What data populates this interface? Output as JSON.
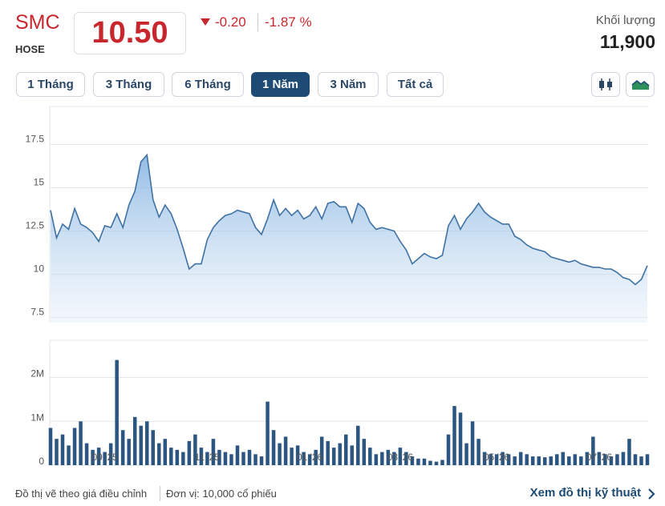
{
  "header": {
    "symbol": "SMC",
    "exchange": "HOSE",
    "price": "10.50",
    "change": "-0.20",
    "change_percent": "-1.87 %",
    "volume_label": "Khối lượng",
    "volume": "11,900"
  },
  "buttons": [
    "1 Tháng",
    "3 Tháng",
    "6 Tháng",
    "1 Năm",
    "3 Năm",
    "Tất cả"
  ],
  "selected_index": 3,
  "footer": {
    "note": "Đồ thị vẽ theo giá điều chỉnh",
    "unit": "Đơn vị: 10,000 cổ phiếu",
    "link": "Xem đồ thị kỹ thuật"
  },
  "chart_data": [
    {
      "type": "area",
      "color": "#3f72a3",
      "grid": true,
      "ylim": [
        7.2,
        19.7
      ],
      "yticks": [
        7.5,
        10,
        12.5,
        15,
        17.5
      ],
      "values": [
        13.7,
        12.1,
        12.9,
        12.6,
        13.8,
        12.9,
        12.7,
        12.4,
        11.9,
        12.8,
        12.7,
        13.5,
        12.7,
        14.0,
        14.8,
        16.5,
        16.9,
        14.3,
        13.3,
        14.0,
        13.5,
        12.6,
        11.5,
        10.3,
        10.6,
        10.6,
        12.0,
        12.7,
        13.1,
        13.4,
        13.5,
        13.7,
        13.6,
        13.5,
        12.7,
        12.3,
        13.2,
        14.3,
        13.4,
        13.8,
        13.4,
        13.7,
        13.2,
        13.4,
        13.9,
        13.2,
        14.1,
        14.2,
        13.9,
        13.9,
        13.0,
        14.1,
        13.8,
        13.0,
        12.6,
        12.7,
        12.6,
        12.5,
        11.9,
        11.4,
        10.6,
        10.9,
        11.2,
        11.0,
        10.9,
        11.1,
        12.8,
        13.4,
        12.6,
        13.2,
        13.6,
        14.1,
        13.6,
        13.3,
        13.1,
        12.9,
        12.9,
        12.2,
        12.0,
        11.7,
        11.5,
        11.4,
        11.3,
        11.0,
        10.9,
        10.8,
        10.7,
        10.8,
        10.6,
        10.5,
        10.4,
        10.4,
        10.3,
        10.3,
        10.1,
        9.8,
        9.7,
        9.4,
        9.7,
        10.5
      ]
    },
    {
      "type": "bar",
      "color": "#2b5682",
      "grid": true,
      "ylim": [
        0,
        2850000
      ],
      "yticks": [
        0,
        {
          "value": 1000000,
          "label": "1M"
        },
        {
          "value": 2000000,
          "label": "2M"
        }
      ],
      "categories": [
        null,
        null,
        null,
        null,
        null,
        null,
        null,
        null,
        null,
        "09 '25",
        null,
        null,
        null,
        null,
        null,
        null,
        null,
        null,
        null,
        null,
        null,
        null,
        null,
        null,
        null,
        null,
        "11 '25",
        null,
        null,
        null,
        null,
        null,
        null,
        null,
        null,
        null,
        null,
        null,
        null,
        null,
        null,
        null,
        null,
        "01 '26",
        null,
        null,
        null,
        null,
        null,
        null,
        null,
        null,
        null,
        null,
        null,
        null,
        null,
        null,
        "03 '26",
        null,
        null,
        null,
        null,
        null,
        null,
        null,
        null,
        null,
        null,
        null,
        null,
        null,
        null,
        null,
        "05 '26",
        null,
        null,
        null,
        null,
        null,
        null,
        null,
        null,
        null,
        null,
        null,
        null,
        null,
        null,
        null,
        null,
        "07 '26",
        null,
        null,
        null,
        null,
        null,
        null,
        null,
        null
      ],
      "values": [
        850000,
        600000,
        700000,
        450000,
        850000,
        1000000,
        500000,
        350000,
        400000,
        300000,
        500000,
        2400000,
        800000,
        600000,
        1100000,
        900000,
        1000000,
        800000,
        500000,
        600000,
        400000,
        350000,
        300000,
        550000,
        700000,
        400000,
        300000,
        600000,
        350000,
        300000,
        250000,
        450000,
        300000,
        350000,
        250000,
        200000,
        1450000,
        800000,
        500000,
        650000,
        400000,
        450000,
        300000,
        250000,
        350000,
        650000,
        550000,
        400000,
        500000,
        700000,
        450000,
        900000,
        600000,
        400000,
        250000,
        300000,
        350000,
        300000,
        400000,
        300000,
        200000,
        150000,
        150000,
        100000,
        80000,
        120000,
        700000,
        1350000,
        1200000,
        500000,
        1000000,
        600000,
        300000,
        250000,
        250000,
        300000,
        250000,
        200000,
        300000,
        250000,
        200000,
        200000,
        180000,
        200000,
        250000,
        300000,
        200000,
        250000,
        200000,
        300000,
        650000,
        300000,
        250000,
        200000,
        250000,
        300000,
        600000,
        250000,
        200000,
        250000
      ]
    }
  ]
}
